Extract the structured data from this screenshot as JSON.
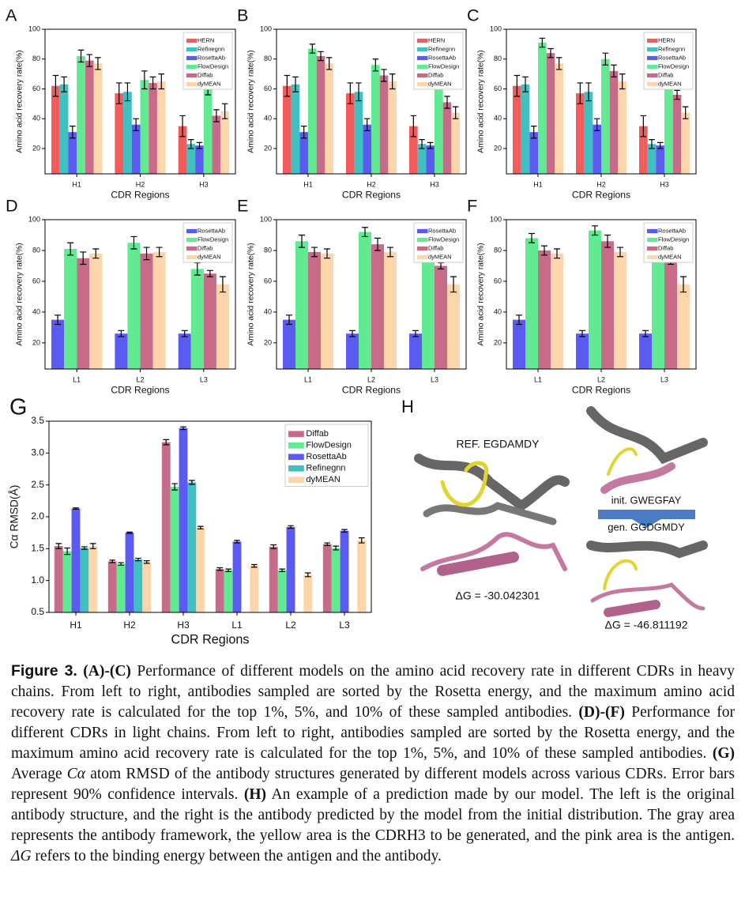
{
  "chart_data": [
    {
      "type": "bar",
      "panel": "A",
      "xlabel": "CDR Regions",
      "ylabel": "Amino acid recovery rate(%)",
      "categories": [
        "H1",
        "H2",
        "H3"
      ],
      "ylim": [
        3,
        100
      ],
      "yticks": [
        20,
        40,
        60,
        80,
        100
      ],
      "series": [
        {
          "name": "HERN",
          "color": "#f25c5c",
          "values": [
            62,
            57,
            35
          ],
          "errors": [
            7,
            7,
            7
          ]
        },
        {
          "name": "Refinegnn",
          "color": "#40c0c0",
          "values": [
            63,
            58,
            23
          ],
          "errors": [
            5,
            6,
            3
          ]
        },
        {
          "name": "RosettaAb",
          "color": "#5b5bf2",
          "values": [
            31,
            36,
            22
          ],
          "errors": [
            4,
            4,
            2
          ]
        },
        {
          "name": "FlowDesign",
          "color": "#62ea92",
          "values": [
            82,
            66,
            60
          ],
          "errors": [
            4,
            6,
            4
          ]
        },
        {
          "name": "Diffab",
          "color": "#c76b88",
          "values": [
            79,
            64,
            42
          ],
          "errors": [
            4,
            4,
            4
          ]
        },
        {
          "name": "dyMEAN",
          "color": "#fdd5aa",
          "values": [
            77,
            65,
            45
          ],
          "errors": [
            4,
            5,
            5
          ]
        }
      ]
    },
    {
      "type": "bar",
      "panel": "B",
      "xlabel": "CDR Regions",
      "ylabel": "Amino acid recovery rate(%)",
      "categories": [
        "H1",
        "H2",
        "H3"
      ],
      "ylim": [
        3,
        100
      ],
      "yticks": [
        20,
        40,
        60,
        80,
        100
      ],
      "series": [
        {
          "name": "HERN",
          "color": "#f25c5c",
          "values": [
            62,
            57,
            35
          ],
          "errors": [
            7,
            7,
            7
          ]
        },
        {
          "name": "Refinegnn",
          "color": "#40c0c0",
          "values": [
            63,
            58,
            23
          ],
          "errors": [
            5,
            6,
            3
          ]
        },
        {
          "name": "RosettaAb",
          "color": "#5b5bf2",
          "values": [
            31,
            36,
            22
          ],
          "errors": [
            4,
            4,
            2
          ]
        },
        {
          "name": "FlowDesign",
          "color": "#62ea92",
          "values": [
            87,
            76,
            68
          ],
          "errors": [
            3,
            4,
            4
          ]
        },
        {
          "name": "Diffab",
          "color": "#c76b88",
          "values": [
            82,
            69,
            51
          ],
          "errors": [
            3,
            4,
            4
          ]
        },
        {
          "name": "dyMEAN",
          "color": "#fdd5aa",
          "values": [
            77,
            65,
            44
          ],
          "errors": [
            4,
            5,
            4
          ]
        }
      ]
    },
    {
      "type": "bar",
      "panel": "C",
      "xlabel": "CDR Regions",
      "ylabel": "Amino acid recovery rate(%)",
      "categories": [
        "H1",
        "H2",
        "H3"
      ],
      "ylim": [
        3,
        100
      ],
      "yticks": [
        20,
        40,
        60,
        80,
        100
      ],
      "series": [
        {
          "name": "HERN",
          "color": "#f25c5c",
          "values": [
            62,
            57,
            35
          ],
          "errors": [
            7,
            7,
            7
          ]
        },
        {
          "name": "Refinegnn",
          "color": "#40c0c0",
          "values": [
            63,
            58,
            23
          ],
          "errors": [
            5,
            6,
            3
          ]
        },
        {
          "name": "RosettaAb",
          "color": "#5b5bf2",
          "values": [
            31,
            36,
            22
          ],
          "errors": [
            4,
            4,
            2
          ]
        },
        {
          "name": "FlowDesign",
          "color": "#62ea92",
          "values": [
            91,
            80,
            66
          ],
          "errors": [
            3,
            4,
            4
          ]
        },
        {
          "name": "Diffab",
          "color": "#c76b88",
          "values": [
            84,
            72,
            56
          ],
          "errors": [
            3,
            4,
            3
          ]
        },
        {
          "name": "dyMEAN",
          "color": "#fdd5aa",
          "values": [
            77,
            65,
            44
          ],
          "errors": [
            4,
            5,
            4
          ]
        }
      ]
    },
    {
      "type": "bar",
      "panel": "D",
      "xlabel": "CDR Regions",
      "ylabel": "Amino acid recovery rate(%)",
      "categories": [
        "L1",
        "L2",
        "L3"
      ],
      "ylim": [
        3,
        100
      ],
      "yticks": [
        20,
        40,
        60,
        80,
        100
      ],
      "series": [
        {
          "name": "RosettaAb",
          "color": "#5b5bf2",
          "values": [
            35,
            26,
            26
          ],
          "errors": [
            3,
            2,
            2
          ]
        },
        {
          "name": "FlowDesign",
          "color": "#62ea92",
          "values": [
            81,
            85,
            68
          ],
          "errors": [
            4,
            4,
            4
          ]
        },
        {
          "name": "Diffab",
          "color": "#c76b88",
          "values": [
            75,
            78,
            65
          ],
          "errors": [
            4,
            4,
            2
          ]
        },
        {
          "name": "dyMEAN",
          "color": "#fdd5aa",
          "values": [
            78,
            79,
            58
          ],
          "errors": [
            3,
            3,
            5
          ]
        }
      ]
    },
    {
      "type": "bar",
      "panel": "E",
      "xlabel": "CDR Regions",
      "ylabel": "Amino acid recovery rate(%)",
      "categories": [
        "L1",
        "L2",
        "L3"
      ],
      "ylim": [
        3,
        100
      ],
      "yticks": [
        20,
        40,
        60,
        80,
        100
      ],
      "series": [
        {
          "name": "RosettaAb",
          "color": "#5b5bf2",
          "values": [
            35,
            26,
            26
          ],
          "errors": [
            3,
            2,
            2
          ]
        },
        {
          "name": "FlowDesign",
          "color": "#62ea92",
          "values": [
            86,
            92,
            80
          ],
          "errors": [
            4,
            3,
            3
          ]
        },
        {
          "name": "Diffab",
          "color": "#c76b88",
          "values": [
            79,
            84,
            70
          ],
          "errors": [
            3,
            4,
            2
          ]
        },
        {
          "name": "dyMEAN",
          "color": "#fdd5aa",
          "values": [
            78,
            79,
            58
          ],
          "errors": [
            3,
            3,
            5
          ]
        }
      ]
    },
    {
      "type": "bar",
      "panel": "F",
      "xlabel": "CDR Regions",
      "ylabel": "Amino acid recovery rate(%)",
      "categories": [
        "L1",
        "L2",
        "L3"
      ],
      "ylim": [
        3,
        100
      ],
      "yticks": [
        20,
        40,
        60,
        80,
        100
      ],
      "series": [
        {
          "name": "RosettaAb",
          "color": "#5b5bf2",
          "values": [
            35,
            26,
            26
          ],
          "errors": [
            3,
            2,
            2
          ]
        },
        {
          "name": "FlowDesign",
          "color": "#62ea92",
          "values": [
            88,
            93,
            82
          ],
          "errors": [
            3,
            3,
            3
          ]
        },
        {
          "name": "Diffab",
          "color": "#c76b88",
          "values": [
            80,
            86,
            73
          ],
          "errors": [
            3,
            4,
            2
          ]
        },
        {
          "name": "dyMEAN",
          "color": "#fdd5aa",
          "values": [
            78,
            79,
            58
          ],
          "errors": [
            3,
            3,
            5
          ]
        }
      ]
    },
    {
      "type": "bar",
      "panel": "G",
      "xlabel": "CDR Regions",
      "ylabel": "Cα RMSD(Å)",
      "categories": [
        "H1",
        "H2",
        "H3",
        "L1",
        "L2",
        "L3"
      ],
      "ylim": [
        0.5,
        3.5
      ],
      "yticks": [
        0.5,
        {
          "value": 1,
          "label": "1.0"
        },
        1.5,
        {
          "value": 2,
          "label": "2.0"
        },
        2.5,
        {
          "value": 3,
          "label": "3.0"
        },
        3.5
      ],
      "series": [
        {
          "name": "Diffab",
          "color": "#c76b88",
          "values": [
            1.54,
            1.3,
            3.17,
            1.18,
            1.53,
            1.57
          ],
          "errors": [
            0.04,
            0.02,
            0.04,
            0.02,
            0.03,
            0.02
          ]
        },
        {
          "name": "FlowDesign",
          "color": "#62ea92",
          "values": [
            1.46,
            1.26,
            2.47,
            1.16,
            1.16,
            1.51
          ],
          "errors": [
            0.05,
            0.02,
            0.05,
            0.02,
            0.02,
            0.03
          ]
        },
        {
          "name": "RosettaAb",
          "color": "#5b5bf2",
          "values": [
            2.13,
            1.75,
            3.39,
            1.61,
            1.84,
            1.78
          ],
          "errors": [
            0.01,
            0.01,
            0.02,
            0.02,
            0.02,
            0.02
          ]
        },
        {
          "name": "Refinegnn",
          "color": "#40c0c0",
          "values": [
            1.51,
            1.33,
            2.54,
            null,
            null,
            null
          ],
          "errors": [
            0.02,
            0.02,
            0.03,
            null,
            null,
            null
          ]
        },
        {
          "name": "dyMEAN",
          "color": "#fdd5aa",
          "values": [
            1.54,
            1.29,
            1.83,
            1.23,
            1.09,
            1.63
          ],
          "errors": [
            0.04,
            0.02,
            0.02,
            0.02,
            0.03,
            0.04
          ]
        }
      ]
    }
  ],
  "panel_h": {
    "letter": "H",
    "ref_label": "REF. EGDAMDY",
    "ref_dg": "ΔG = -30.042301",
    "init_label": "init. GWEGFAY",
    "gen_label": "gen. GGDGMDY",
    "gen_dg": "ΔG = -46.811192"
  },
  "caption": [
    {
      "text": "Figure 3.",
      "style": "label"
    },
    {
      "text": " (A)-(C)",
      "style": "bold"
    },
    {
      "text": " Performance of different models on the amino acid recovery rate in different CDRs in heavy chains. From left to right, antibodies sampled are sorted by the Rosetta energy, and the maximum amino acid recovery rate is calculated for the top 1%, 5%, and 10% of these sampled antibodies.",
      "style": "normal"
    },
    {
      "text": " (D)-(F)",
      "style": "bold"
    },
    {
      "text": " Performance for different CDRs in light chains. From left to right, antibodies sampled are sorted by the Rosetta energy, and the maximum amino acid recovery rate is calculated for the top 1%, 5%, and 10% of these sampled antibodies.",
      "style": "normal"
    },
    {
      "text": " (G)",
      "style": "bold"
    },
    {
      "text": " Average ",
      "style": "normal"
    },
    {
      "text": "Cα",
      "style": "italic"
    },
    {
      "text": " atom RMSD of the antibody structures generated by different models across various CDRs. Error bars represent 90% confidence intervals.",
      "style": "normal"
    },
    {
      "text": " (H)",
      "style": "bold"
    },
    {
      "text": " An example of a prediction made by our model. The left is the original antibody structure, and the right is the antibody predicted by the model from the initial distribution. The gray area represents the antibody framework, the yellow area is the CDRH3 to be generated, and the pink area is the antigen. ",
      "style": "normal"
    },
    {
      "text": "ΔG",
      "style": "italic"
    },
    {
      "text": " refers to the binding energy between the antigen and the antibody.",
      "style": "normal"
    }
  ]
}
